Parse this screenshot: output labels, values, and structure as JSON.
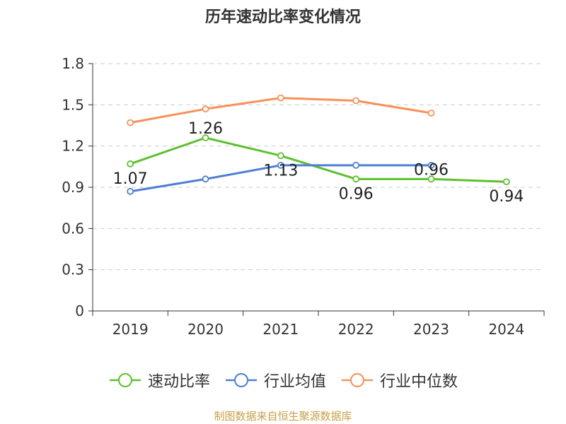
{
  "chart_data": {
    "type": "line",
    "title": "历年速动比率变化情况",
    "categories": [
      "2019",
      "2020",
      "2021",
      "2022",
      "2023",
      "2024"
    ],
    "y_ticks": [
      "0",
      "0.3",
      "0.6",
      "0.9",
      "1.2",
      "1.5",
      "1.8"
    ],
    "ylim": [
      0,
      1.8
    ],
    "grid": true,
    "legend_position": "bottom",
    "series": [
      {
        "name": "速动比率",
        "color": "#5cc02e",
        "values": [
          1.07,
          1.26,
          1.13,
          0.96,
          0.96,
          0.94
        ],
        "labels": [
          "1.07",
          "1.26",
          "1.13",
          "0.96",
          "0.96",
          "0.94"
        ]
      },
      {
        "name": "行业均值",
        "color": "#4e7fd6",
        "values": [
          0.87,
          0.96,
          1.06,
          1.06,
          1.06,
          null
        ]
      },
      {
        "name": "行业中位数",
        "color": "#f89158",
        "values": [
          1.37,
          1.47,
          1.55,
          1.53,
          1.44,
          null
        ]
      }
    ]
  },
  "source": "制图数据来自恒生聚源数据库"
}
